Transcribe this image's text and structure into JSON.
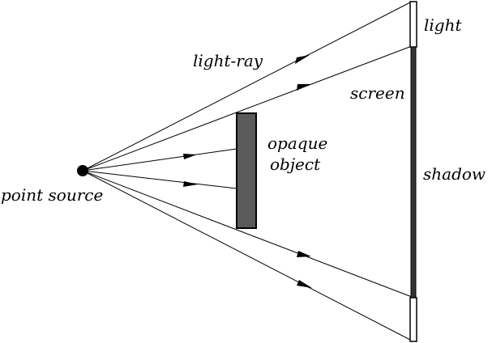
{
  "diagram": {
    "labels": {
      "light_ray": "light-ray",
      "light": "light",
      "screen": "screen",
      "opaque_line1": "opaque",
      "opaque_line2": "object",
      "shadow": "shadow",
      "point_source": "point source"
    },
    "colors": {
      "line": "#000000",
      "object_fill": "#5a5a5a",
      "screen_shadow": "#333333",
      "screen_lit": "#ffffff",
      "background": "#ffffff"
    }
  }
}
